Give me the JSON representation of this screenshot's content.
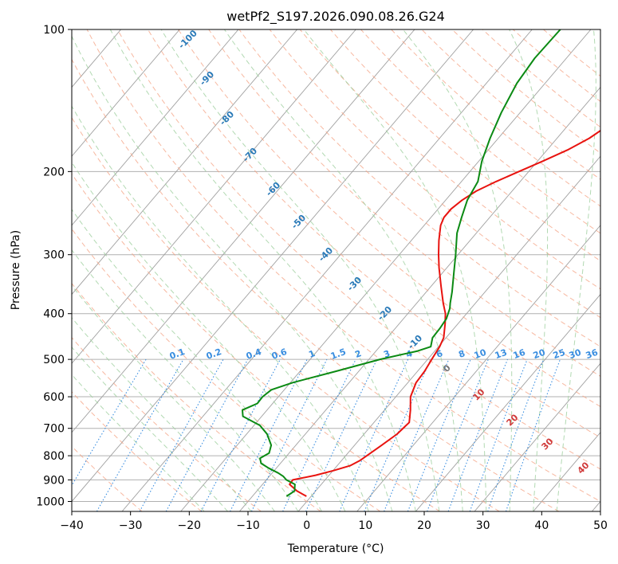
{
  "chart_data": {
    "type": "line",
    "subtype": "skew-t log-p",
    "title": "wetPf2_S197.2026.090.08.26.G24",
    "xlabel": "Temperature (°C)",
    "ylabel": "Pressure (hPa)",
    "xlim": [
      -40,
      50
    ],
    "ylim": [
      1050,
      100
    ],
    "yscale": "log",
    "grid": true,
    "x_ticks": [
      "−40",
      "−30",
      "−20",
      "−10",
      "0",
      "10",
      "20",
      "30",
      "40",
      "50"
    ],
    "x_tick_values": [
      -40,
      -30,
      -20,
      -10,
      0,
      10,
      20,
      30,
      40,
      50
    ],
    "y_ticks": [
      "1000",
      "900",
      "800",
      "700",
      "600",
      "500",
      "400",
      "300",
      "200",
      "100"
    ],
    "y_tick_values": [
      1000,
      900,
      800,
      700,
      600,
      500,
      400,
      300,
      200,
      100
    ],
    "colors": {
      "temperature": "#e8130f",
      "dewpoint": "#0b8a13",
      "dry_adiabat": "#f4a080",
      "moist_adiabat": "#9fd09f",
      "mixing_ratio": "#3a8ee0",
      "isotherm": "#a0a0a0"
    },
    "series": [
      {
        "key": "temperature",
        "pressure": [
          975,
          950,
          920,
          900,
          880,
          860,
          840,
          820,
          800,
          760,
          720,
          680,
          640,
          600,
          560,
          530,
          500,
          470,
          450,
          420,
          400,
          380,
          350,
          320,
          300,
          280,
          260,
          250,
          240,
          230,
          220,
          210,
          200,
          190,
          180,
          170,
          160,
          150,
          140,
          130,
          120,
          110,
          100
        ],
        "values": [
          -0.8,
          -3.2,
          -5.4,
          -5.5,
          -2.3,
          0.1,
          2.2,
          3.1,
          3.6,
          4.6,
          5.6,
          6.0,
          4.4,
          2.5,
          1.4,
          1.2,
          0.7,
          0.2,
          -0.4,
          -2.2,
          -3.6,
          -5.5,
          -8.3,
          -11.3,
          -13.3,
          -15.3,
          -17.2,
          -17.8,
          -17.8,
          -17.2,
          -16.1,
          -14.1,
          -11.7,
          -9.1,
          -6.5,
          -4.5,
          -3.2,
          -2.4,
          -2.4,
          -3.9,
          -5.6,
          -7.3,
          -8.9
        ]
      },
      {
        "key": "dewpoint",
        "pressure": [
          975,
          950,
          920,
          900,
          885,
          870,
          850,
          830,
          810,
          790,
          760,
          720,
          690,
          660,
          640,
          620,
          600,
          580,
          560,
          530,
          500,
          480,
          470,
          450,
          430,
          410,
          390,
          380,
          360,
          330,
          300,
          270,
          250,
          230,
          210,
          190,
          170,
          150,
          130,
          115,
          100
        ],
        "values": [
          -4.2,
          -3.6,
          -4.5,
          -6.6,
          -7.6,
          -9.0,
          -11.3,
          -13.3,
          -14.2,
          -13.4,
          -14.2,
          -16.5,
          -19.0,
          -23.2,
          -24.2,
          -22.6,
          -22.7,
          -22.2,
          -19.6,
          -13.9,
          -8.1,
          -2.9,
          -1.3,
          -2.3,
          -2.4,
          -2.7,
          -3.6,
          -4.3,
          -5.6,
          -7.9,
          -10.4,
          -13.3,
          -14.8,
          -16.3,
          -17.2,
          -19.5,
          -21.4,
          -23.2,
          -24.8,
          -25.4,
          -25.2
        ]
      }
    ],
    "dry_adiabat_labels": [
      "-100",
      "-90",
      "-80",
      "-70",
      "-60",
      "-50",
      "-40",
      "-30",
      "-20",
      "-10"
    ],
    "moist_adiabat_labels": [
      "0",
      "10",
      "20",
      "30",
      "40"
    ],
    "mixing_ratio_labels": [
      "0.1",
      "0.2",
      "0.4",
      "0.6",
      "1",
      "1.5",
      "2",
      "3",
      "4",
      "6",
      "8",
      "10",
      "13",
      "16",
      "20",
      "25",
      "30",
      "36"
    ]
  }
}
